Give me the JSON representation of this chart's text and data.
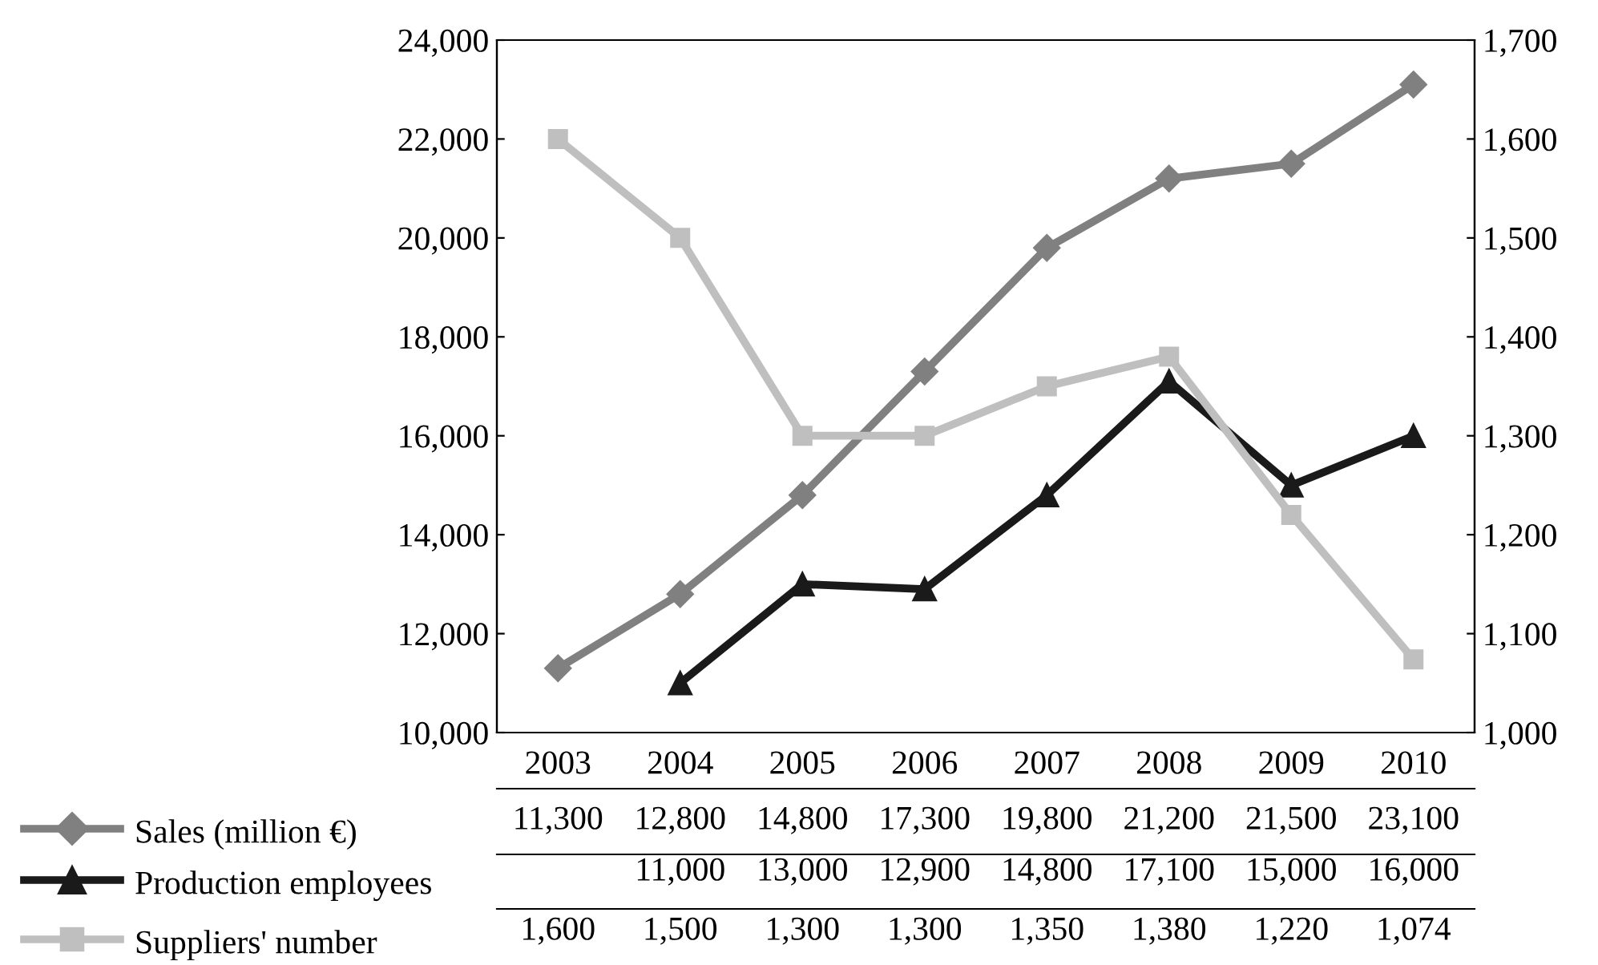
{
  "chart_data": {
    "type": "line",
    "categories": [
      "2003",
      "2004",
      "2005",
      "2006",
      "2007",
      "2008",
      "2009",
      "2010"
    ],
    "series": [
      {
        "name": "Sales (million €)",
        "color": "#808080",
        "marker": "diamond",
        "values": [
          11300,
          12800,
          14800,
          17300,
          19800,
          21200,
          21500,
          23100
        ],
        "value_labels": [
          "11,300",
          "12,800",
          "14,800",
          "17,300",
          "19,800",
          "21,200",
          "21,500",
          "23,100"
        ]
      },
      {
        "name": "Production employees",
        "color": "#1a1a1a",
        "marker": "triangle",
        "values": [
          null,
          11000,
          13000,
          12900,
          14800,
          17100,
          15000,
          16000
        ],
        "value_labels": [
          null,
          "11,000",
          "13,000",
          "12,900",
          "14,800",
          "17,100",
          "15,000",
          "16,000"
        ]
      },
      {
        "name": "Suppliers' number",
        "color": "#bfbfbf",
        "marker": "square",
        "axis": "y2",
        "values": [
          1600,
          1500,
          1300,
          1300,
          1350,
          1380,
          1220,
          1074
        ],
        "value_labels": [
          "1,600",
          "1,500",
          "1,300",
          "1,300",
          "1,350",
          "1,380",
          "1,220",
          "1,074"
        ]
      }
    ],
    "ylim": [
      10000,
      24000
    ],
    "yticks": [
      {
        "value": 10000,
        "label": "10,000"
      },
      {
        "value": 12000,
        "label": "12,000"
      },
      {
        "value": 14000,
        "label": "14,000"
      },
      {
        "value": 16000,
        "label": "16,000"
      },
      {
        "value": 18000,
        "label": "18,000"
      },
      {
        "value": 20000,
        "label": "20,000"
      },
      {
        "value": 22000,
        "label": "22,000"
      },
      {
        "value": 24000,
        "label": "24,000"
      }
    ],
    "y2lim": [
      1000,
      1700
    ],
    "y2ticks": [
      {
        "value": 1000,
        "label": "1,000"
      },
      {
        "value": 1100,
        "label": "1,100"
      },
      {
        "value": 1200,
        "label": "1,200"
      },
      {
        "value": 1300,
        "label": "1,300"
      },
      {
        "value": 1400,
        "label": "1,400"
      },
      {
        "value": 1500,
        "label": "1,500"
      },
      {
        "value": 1600,
        "label": "1,600"
      },
      {
        "value": 1700,
        "label": "1,700"
      }
    ],
    "grid": false,
    "legend": "bottom left",
    "line_style": "solid"
  }
}
